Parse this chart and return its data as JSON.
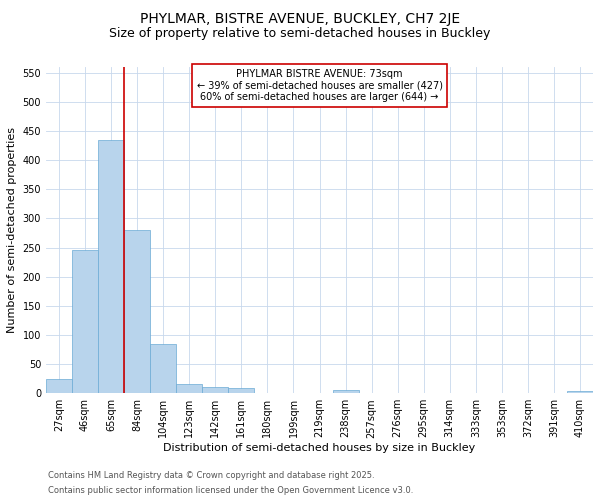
{
  "title1": "PHYLMAR, BISTRE AVENUE, BUCKLEY, CH7 2JE",
  "title2": "Size of property relative to semi-detached houses in Buckley",
  "xlabel": "Distribution of semi-detached houses by size in Buckley",
  "ylabel": "Number of semi-detached properties",
  "categories": [
    "27sqm",
    "46sqm",
    "65sqm",
    "84sqm",
    "104sqm",
    "123sqm",
    "142sqm",
    "161sqm",
    "180sqm",
    "199sqm",
    "219sqm",
    "238sqm",
    "257sqm",
    "276sqm",
    "295sqm",
    "314sqm",
    "333sqm",
    "353sqm",
    "372sqm",
    "391sqm",
    "410sqm"
  ],
  "values": [
    25,
    245,
    435,
    280,
    85,
    15,
    10,
    8,
    0,
    0,
    0,
    5,
    0,
    0,
    0,
    0,
    0,
    0,
    0,
    0,
    3
  ],
  "bar_color": "#b8d4ec",
  "bar_edge_color": "#6aaad4",
  "vline_x": 2.5,
  "vline_color": "#cc0000",
  "ylim": [
    0,
    560
  ],
  "yticks": [
    0,
    50,
    100,
    150,
    200,
    250,
    300,
    350,
    400,
    450,
    500,
    550
  ],
  "annotation_title": "PHYLMAR BISTRE AVENUE: 73sqm",
  "annotation_line1": "← 39% of semi-detached houses are smaller (427)",
  "annotation_line2": "60% of semi-detached houses are larger (644) →",
  "annotation_box_color": "#ffffff",
  "annotation_box_edge": "#cc0000",
  "footnote1": "Contains HM Land Registry data © Crown copyright and database right 2025.",
  "footnote2": "Contains public sector information licensed under the Open Government Licence v3.0.",
  "bg_color": "#ffffff",
  "grid_color": "#c8d8ec",
  "title1_fontsize": 10,
  "title2_fontsize": 9,
  "xlabel_fontsize": 8,
  "ylabel_fontsize": 8,
  "tick_fontsize": 7,
  "annot_fontsize": 7,
  "footnote_fontsize": 6
}
